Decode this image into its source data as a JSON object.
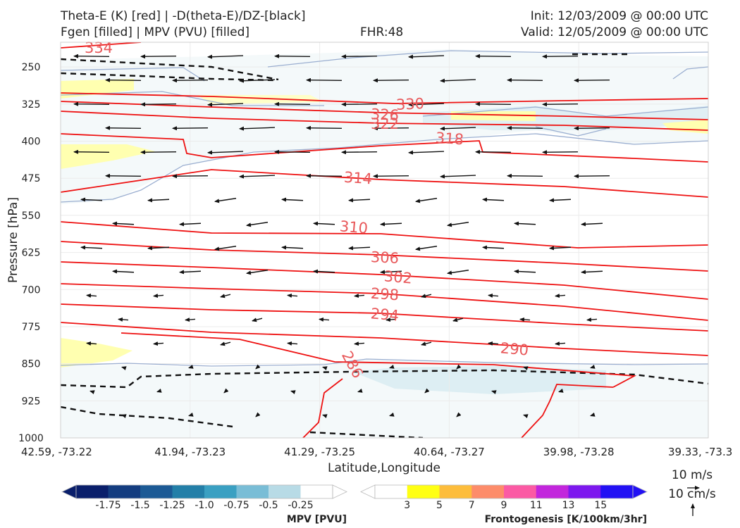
{
  "header": {
    "title_line1": "Theta-E (K) [red] | -D(theta-E)/DZ-[black]",
    "title_line2": "Fgen [filled] | MPV (PVU) [filled]",
    "fhr": "FHR:48",
    "init": "Init: 12/03/2009 @ 00:00 UTC",
    "valid": "Valid: 12/05/2009 @ 00:00 UTC"
  },
  "chart_data": {
    "type": "cross-section",
    "xlabel": "Latitude,Longitude",
    "ylabel": "Pressure [hPa]",
    "x_ticks": [
      "42.59, -73.22",
      "41.94, -73.23",
      "41.29, -73.25",
      "40.64, -73.27",
      "39.98, -73.28",
      "39.33, -73.3"
    ],
    "y_ticks": [
      250,
      325,
      400,
      475,
      550,
      625,
      700,
      775,
      850,
      925,
      1000
    ],
    "ylim": [
      1000,
      200
    ],
    "grid": true,
    "theta_e_contours": [
      {
        "label": "334",
        "values": [
          200,
          200
        ]
      },
      {
        "label": "330",
        "values": [
          325,
          318,
          320,
          310
        ]
      },
      {
        "label": "326",
        "values": [
          340,
          340,
          338,
          335
        ]
      },
      {
        "label": "322",
        "values": [
          363,
          358,
          355,
          352
        ]
      },
      {
        "label": "318",
        "values": [
          400,
          395,
          392,
          390
        ]
      },
      {
        "label": "314",
        "values": [
          470,
          458,
          448,
          440
        ]
      },
      {
        "label": "310",
        "values": [
          545,
          540,
          540,
          530
        ]
      },
      {
        "label": "306",
        "values": [
          602,
          598,
          605,
          590
        ]
      },
      {
        "label": "302",
        "values": [
          650,
          645,
          648,
          640
        ]
      },
      {
        "label": "298",
        "values": [
          690,
          690,
          700,
          700
        ]
      },
      {
        "label": "294",
        "values": [
          732,
          745,
          770,
          770
        ]
      },
      {
        "label": "290",
        "values": [
          778,
          795,
          810,
          840
        ]
      },
      {
        "label": "286",
        "values": [
          860,
          900,
          1000,
          1000
        ]
      }
    ],
    "wind_units": "10 m/s",
    "vertical_wind_units": "10 cm/s",
    "colorbars": [
      {
        "title": "MPV [PVU]",
        "ticks": [
          "-1.75",
          "-1.5",
          "-1.25",
          "-1.0",
          "-0.75",
          "-0.5",
          "-0.25"
        ],
        "colors": [
          "#0a1f6b",
          "#143d80",
          "#1c5a95",
          "#237fa8",
          "#3aa0c2",
          "#79bdd6",
          "#b8dbe6",
          "#ffffff"
        ]
      },
      {
        "title": "Frontogenesis [K/100km/3hr]",
        "ticks": [
          "3",
          "5",
          "7",
          "9",
          "11",
          "13",
          "15"
        ],
        "colors": [
          "#ffffff",
          "#ffff14",
          "#fdbd3c",
          "#fd8c6a",
          "#fb5aa4",
          "#c226dc",
          "#7d18ee",
          "#2211f4"
        ]
      }
    ]
  },
  "colors": {
    "theta_e": "#ee1111",
    "clabel": "#e8585a",
    "mpv_line": "#9aaed0",
    "black": "#111111"
  }
}
